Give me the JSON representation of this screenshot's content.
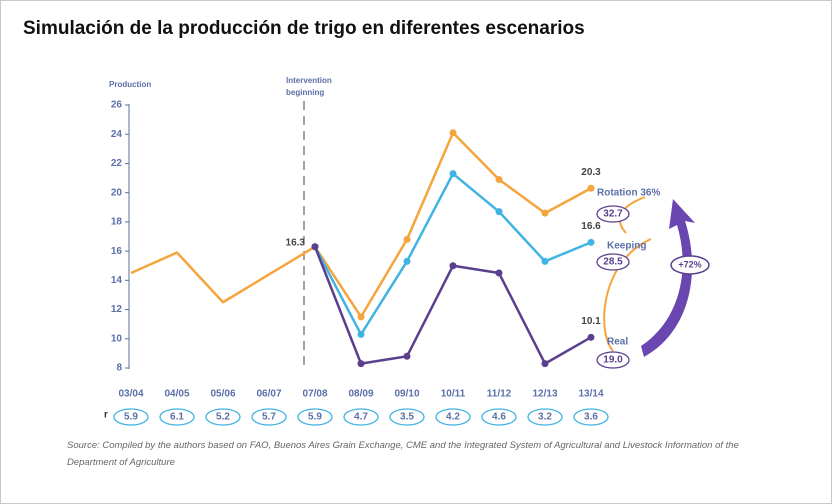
{
  "chart_data": {
    "type": "line",
    "title": "Simulación de la producción de trigo en diferentes escenarios",
    "y_label": "Production",
    "intervention_label": [
      "Intervention",
      "beginning"
    ],
    "categories": [
      "03/04",
      "04/05",
      "05/06",
      "06/07",
      "07/08",
      "08/09",
      "09/10",
      "10/11",
      "11/12",
      "12/13",
      "13/14"
    ],
    "series": [
      {
        "name": "Rotation 36%",
        "color": "#f5a53c",
        "values": [
          14.5,
          15.9,
          12.5,
          14.4,
          16.3,
          11.5,
          16.8,
          24.1,
          20.9,
          18.6,
          20.3
        ]
      },
      {
        "name": "Keeping",
        "color": "#41b3e3",
        "values": [
          null,
          null,
          null,
          null,
          16.3,
          10.3,
          15.3,
          21.3,
          18.7,
          15.3,
          16.6
        ]
      },
      {
        "name": "Real",
        "color": "#5b3f8e",
        "values": [
          null,
          null,
          null,
          null,
          16.3,
          8.3,
          8.8,
          15.0,
          14.5,
          8.3,
          10.1
        ]
      }
    ],
    "ylim": [
      8,
      26
    ],
    "yticks": [
      8,
      10,
      12,
      14,
      16,
      18,
      20,
      22,
      24,
      26
    ],
    "grid": false,
    "r_label": "r",
    "r_values": [
      5.9,
      6.1,
      5.2,
      5.7,
      5.9,
      4.7,
      3.5,
      4.2,
      4.6,
      3.2,
      3.6
    ],
    "totals": {
      "values": [
        32.7,
        28.5,
        19
      ],
      "value_labels": [
        "32.7",
        "28.5",
        "19.0"
      ]
    },
    "change_label": "+72%",
    "source": "Source: Compiled by the authors based on FAO, Buenos Aires Grain Exchange, CME and the Integrated System of Agricultural and Livestock Information of the Department of Agriculture"
  }
}
